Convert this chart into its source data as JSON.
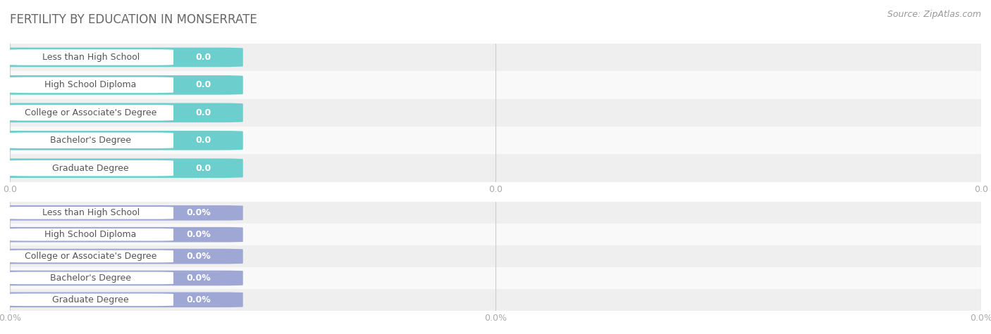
{
  "title": "FERTILITY BY EDUCATION IN MONSERRATE",
  "source": "Source: ZipAtlas.com",
  "categories": [
    "Less than High School",
    "High School Diploma",
    "College or Associate's Degree",
    "Bachelor's Degree",
    "Graduate Degree"
  ],
  "bar_color_top": "#6dcece",
  "bar_color_bottom": "#9fa8d4",
  "row_bg_colors": [
    "#f0f0f0",
    "#f8f8f8"
  ],
  "title_color": "#666666",
  "tick_color": "#aaaaaa",
  "grid_color": "#cccccc",
  "title_fontsize": 12,
  "source_fontsize": 9,
  "bar_fontsize": 9,
  "xtick_labels_top": [
    "0.0",
    "0.0",
    "0.0"
  ],
  "xtick_labels_bottom": [
    "0.0%",
    "0.0%",
    "0.0%"
  ],
  "value_top": "0.0",
  "value_bottom": "0.0%"
}
